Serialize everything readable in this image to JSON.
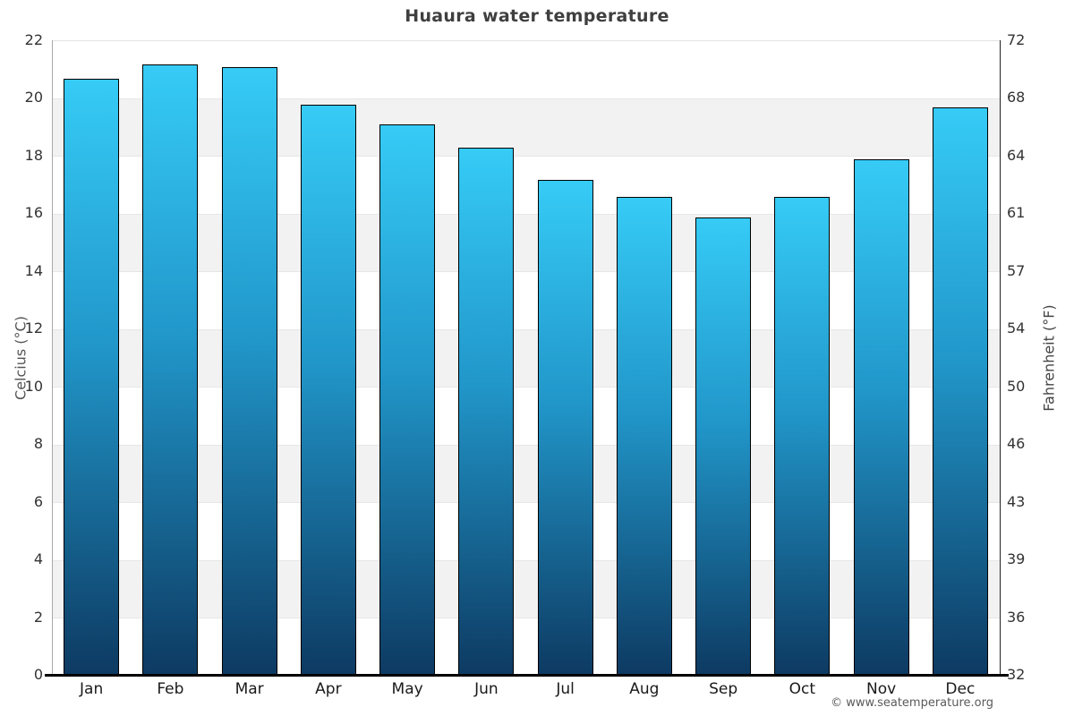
{
  "chart_data": {
    "type": "bar",
    "title": "Huaura water temperature",
    "categories": [
      "Jan",
      "Feb",
      "Mar",
      "Apr",
      "May",
      "Jun",
      "Jul",
      "Aug",
      "Sep",
      "Oct",
      "Nov",
      "Dec"
    ],
    "values": [
      20.7,
      21.2,
      21.1,
      19.8,
      19.1,
      18.3,
      17.2,
      16.6,
      15.9,
      16.6,
      17.9,
      19.7
    ],
    "ylabel_left": "Celcius (°C)",
    "ylabel_right": "Fahrenheit (°F)",
    "ylim_left": [
      0,
      22
    ],
    "yticks_left": [
      22,
      20,
      18,
      16,
      14,
      12,
      10,
      8,
      6,
      4,
      2,
      0
    ],
    "yticks_right": [
      "72",
      "68",
      "64",
      "61",
      "57",
      "54",
      "50",
      "46",
      "43",
      "39",
      "36",
      "32"
    ],
    "grid": "alternating horizontal bands, no vertical gridlines",
    "legend": "none",
    "colors": {
      "bar_gradient_top": "#36cbf6",
      "bar_gradient_mid": "#2196c9",
      "bar_gradient_bottom": "#0d3a62",
      "bar_border": "#000000",
      "band_gray": "#f2f2f2",
      "title_text": "#3f3f3f",
      "tick_text": "#333333"
    }
  },
  "footer": {
    "copyright": "© www.seatemperature.org"
  }
}
